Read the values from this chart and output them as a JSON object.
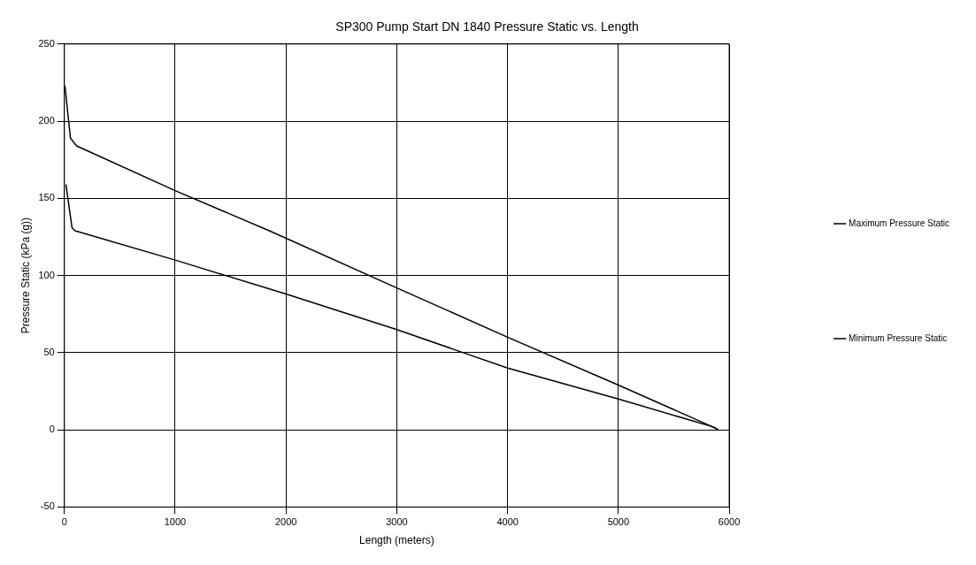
{
  "chart_data": {
    "type": "line",
    "title": "SP300 Pump Start DN 1840 Pressure Static vs. Length",
    "xlabel": "Length (meters)",
    "ylabel": "Pressure Static (kPa (g))",
    "series": [
      {
        "name": "Maximum Pressure Static",
        "color": "#000000",
        "x": [
          5,
          55,
          110,
          1000,
          1850,
          3000,
          4000,
          5000,
          5880,
          5900
        ],
        "values": [
          223,
          189,
          184,
          155,
          129,
          92,
          60,
          29,
          1,
          0
        ]
      },
      {
        "name": "Minimum Pressure Static",
        "color": "#000000",
        "x": [
          14,
          69,
          97,
          1000,
          2000,
          3000,
          3600,
          4000,
          5000,
          5850,
          5900
        ],
        "values": [
          159,
          131,
          129,
          110,
          88,
          65,
          50,
          40,
          20,
          2,
          0
        ]
      }
    ],
    "xlim": [
      0,
      6000
    ],
    "xticks": [
      0,
      1000,
      2000,
      3000,
      4000,
      5000,
      6000
    ],
    "ylim": [
      -50,
      250
    ],
    "yticks": [
      -50,
      0,
      50,
      100,
      150,
      200,
      250
    ],
    "grid": true,
    "legend": "right",
    "marker": "none",
    "line_style": "solid"
  }
}
